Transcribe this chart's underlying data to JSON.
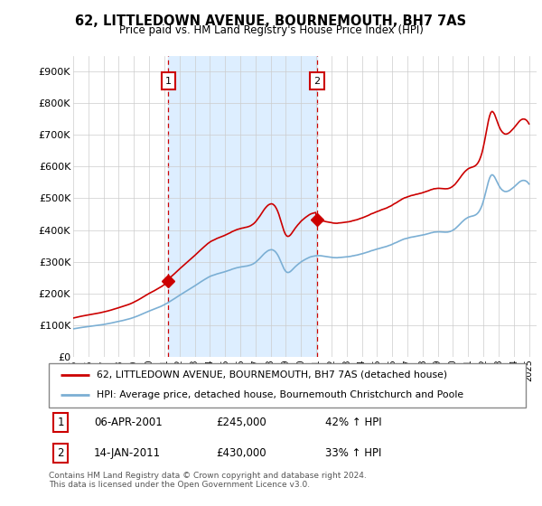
{
  "title": "62, LITTLEDOWN AVENUE, BOURNEMOUTH, BH7 7AS",
  "subtitle": "Price paid vs. HM Land Registry's House Price Index (HPI)",
  "ylabel_ticks": [
    "£0",
    "£100K",
    "£200K",
    "£300K",
    "£400K",
    "£500K",
    "£600K",
    "£700K",
    "£800K",
    "£900K"
  ],
  "ytick_vals": [
    0,
    100000,
    200000,
    300000,
    400000,
    500000,
    600000,
    700000,
    800000,
    900000
  ],
  "ylim": [
    0,
    950000
  ],
  "transaction1": {
    "date_num": 2001.27,
    "price": 245000,
    "label": "1"
  },
  "transaction2": {
    "date_num": 2011.04,
    "price": 430000,
    "label": "2"
  },
  "red_line_color": "#cc0000",
  "blue_line_color": "#7bafd4",
  "shade_color": "#ddeeff",
  "legend_red_label": "62, LITTLEDOWN AVENUE, BOURNEMOUTH, BH7 7AS (detached house)",
  "legend_blue_label": "HPI: Average price, detached house, Bournemouth Christchurch and Poole",
  "footnote": "Contains HM Land Registry data © Crown copyright and database right 2024.\nThis data is licensed under the Open Government Licence v3.0.",
  "table_rows": [
    {
      "num": "1",
      "date": "06-APR-2001",
      "price": "£245,000",
      "hpi": "42% ↑ HPI"
    },
    {
      "num": "2",
      "date": "14-JAN-2011",
      "price": "£430,000",
      "hpi": "33% ↑ HPI"
    }
  ]
}
